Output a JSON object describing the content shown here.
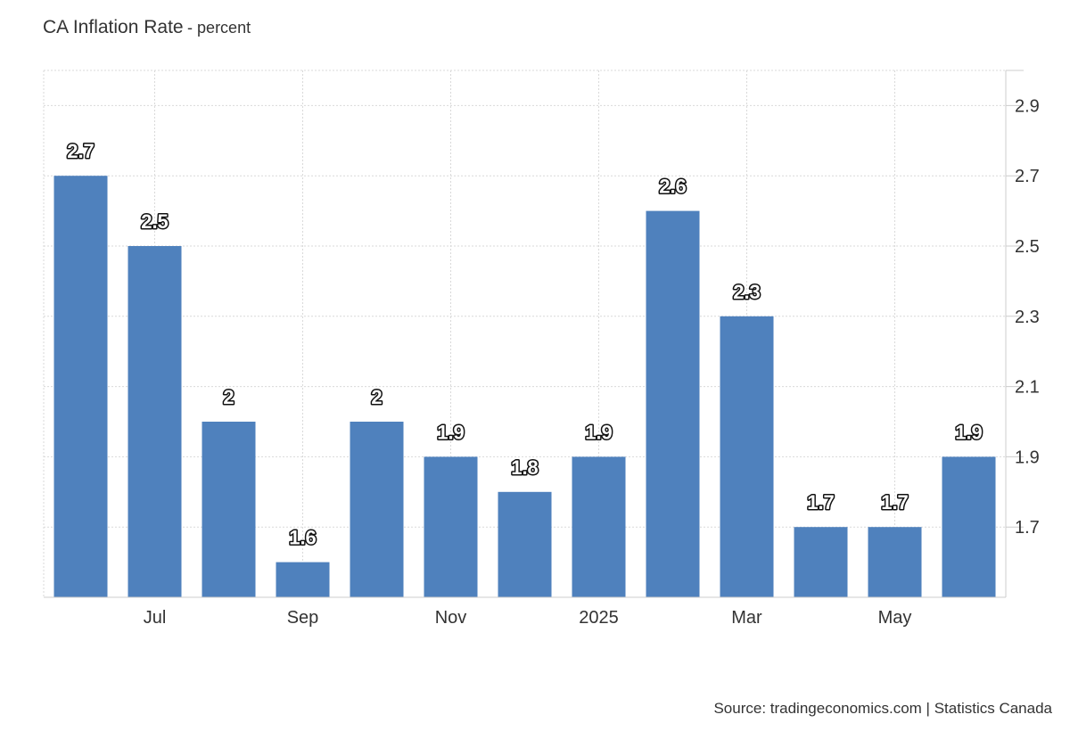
{
  "header": {
    "title": "CA Inflation Rate",
    "subtitle": "- percent"
  },
  "footer": {
    "source": "Source: tradingeconomics.com | Statistics Canada"
  },
  "colors": {
    "bar": "#4f81bd",
    "grid": "#d9d9d9",
    "axis_text": "#333333",
    "label_fill": "#ffffff",
    "label_stroke": "#111111"
  },
  "chart_data": {
    "type": "bar",
    "title": "CA Inflation Rate",
    "subtitle": "- percent",
    "categories": [
      "2024-06",
      "2024-07",
      "2024-08",
      "2024-09",
      "2024-10",
      "2024-11",
      "2024-12",
      "2025-01",
      "2025-02",
      "2025-03",
      "2025-04",
      "2025-05",
      "2025-06"
    ],
    "values": [
      2.7,
      2.5,
      2.0,
      1.6,
      2.0,
      1.9,
      1.8,
      1.9,
      2.6,
      2.3,
      1.7,
      1.7,
      1.9
    ],
    "data_labels": [
      "2.7",
      "2.5",
      "2",
      "1.6",
      "2",
      "1.9",
      "1.8",
      "1.9",
      "2.6",
      "2.3",
      "1.7",
      "1.7",
      "1.9"
    ],
    "x_tick_labels": [
      {
        "category": "2024-07",
        "label": "Jul"
      },
      {
        "category": "2024-09",
        "label": "Sep"
      },
      {
        "category": "2024-11",
        "label": "Nov"
      },
      {
        "category": "2025-01",
        "label": "2025"
      },
      {
        "category": "2025-03",
        "label": "Mar"
      },
      {
        "category": "2025-05",
        "label": "May"
      }
    ],
    "y_ticks": [
      1.7,
      1.9,
      2.1,
      2.3,
      2.5,
      2.7,
      2.9
    ],
    "y_tick_labels": [
      "1.7",
      "1.9",
      "2.1",
      "2.3",
      "2.5",
      "2.7",
      "2.9"
    ],
    "ylim": [
      1.5,
      3.0
    ],
    "y_axis_position": "right",
    "grid": true,
    "legend": "none",
    "xlabel": "",
    "ylabel": ""
  }
}
